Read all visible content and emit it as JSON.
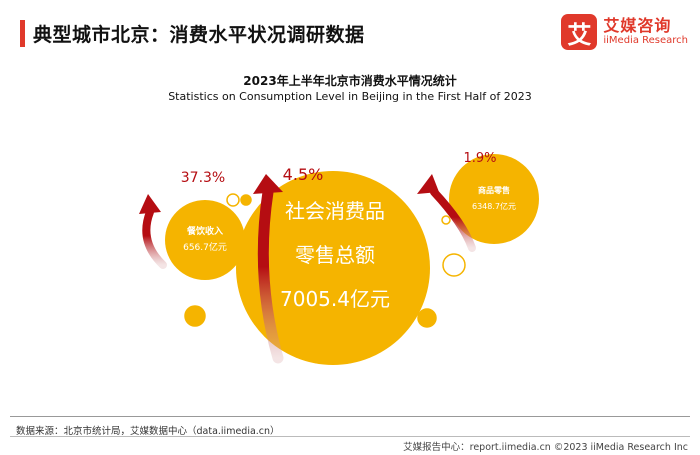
{
  "header": {
    "title": "典型城市北京：消费水平状况调研数据",
    "logo_mark": "艾",
    "logo_cn": "艾媒咨询",
    "logo_en": "iiMedia Research"
  },
  "chart_data": {
    "type": "bubble",
    "title": "2023年上半年北京市消费水平情况统计",
    "subtitle": "Statistics on Consumption Level in Beijing in the First Half of 2023",
    "items": [
      {
        "key": "catering",
        "name": "餐饮收入",
        "value": 656.7,
        "value_label": "656.7亿元",
        "growth": 37.3,
        "growth_label": "37.3%"
      },
      {
        "key": "retail_total",
        "name": "社会消费品零售总额",
        "name_lines": [
          "社会消费品",
          "零售总额"
        ],
        "value": 7005.4,
        "value_label": "7005.4亿元",
        "growth": 4.5,
        "growth_label": "4.5%"
      },
      {
        "key": "goods",
        "name": "商品零售",
        "value": 6348.7,
        "value_label": "6348.7亿元",
        "growth": 1.9,
        "growth_label": "1.9%"
      }
    ]
  },
  "colors": {
    "bubble": "#f5b400",
    "bubble_outline": "#f5b400",
    "arrow": "#b50d12",
    "growth_text": "#b50d12",
    "accent": "#e0392b"
  },
  "footer": {
    "source": "数据来源：北京市统计局，艾媒数据中心（data.iimedia.cn）",
    "copyright": "艾媒报告中心：report.iimedia.cn   ©2023  iiMedia Research  Inc"
  }
}
